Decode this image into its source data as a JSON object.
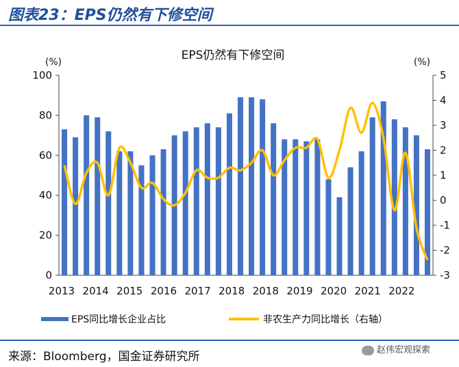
{
  "figure_title": "图表23：EPS仍然有下修空间",
  "source_text": "来源：Bloomberg，国金证券研究所",
  "watermark": "赵伟宏观探索",
  "colors": {
    "bar": "#4472C4",
    "line": "#FFC000",
    "title": "#1f4f9a",
    "rule": "#2f62b8"
  },
  "chart_data": {
    "type": "bar+line",
    "title": "EPS仍然有下修空间",
    "left_unit": "(%)",
    "right_unit": "(%)",
    "left_ylim": [
      0,
      100
    ],
    "left_ticks": [
      0,
      20,
      40,
      60,
      80,
      100
    ],
    "right_ylim": [
      -3,
      5
    ],
    "right_ticks": [
      -3,
      -2,
      -1,
      0,
      1,
      2,
      3,
      4,
      5
    ],
    "right_tick_labels": [
      "-3",
      "-2",
      "-1",
      "0",
      "1",
      "2",
      "3",
      "4",
      "5"
    ],
    "x_labels": [
      "2013",
      "2014",
      "2015",
      "2016",
      "2017",
      "2018",
      "2018",
      "2019",
      "2020",
      "2021",
      "2022"
    ],
    "series": [
      {
        "name": "EPS同比增长企业占比",
        "type": "bar",
        "axis": "left",
        "values": [
          73,
          69,
          80,
          79,
          72,
          62,
          62,
          55,
          60,
          63,
          70,
          72,
          74,
          76,
          74,
          81,
          89,
          89,
          88,
          76,
          68,
          68,
          67,
          68,
          48,
          39,
          54,
          62,
          79,
          87,
          78,
          74,
          70,
          63
        ]
      },
      {
        "name": "非农生产力同比增长（右轴）",
        "type": "line",
        "axis": "right",
        "values": [
          1.4,
          -0.15,
          1.1,
          1.5,
          0.2,
          2.1,
          1.5,
          0.5,
          0.7,
          0.05,
          -0.2,
          0.3,
          1.2,
          0.9,
          0.9,
          1.3,
          1.2,
          1.5,
          2.0,
          1.0,
          1.6,
          2.1,
          2.1,
          2.45,
          0.9,
          2.0,
          3.7,
          2.7,
          3.9,
          2.5,
          -0.4,
          1.9,
          -1.1,
          -2.4
        ]
      }
    ],
    "legend": [
      "EPS同比增长企业占比",
      "非农生产力同比增长（右轴）"
    ],
    "legend_position": "bottom"
  }
}
